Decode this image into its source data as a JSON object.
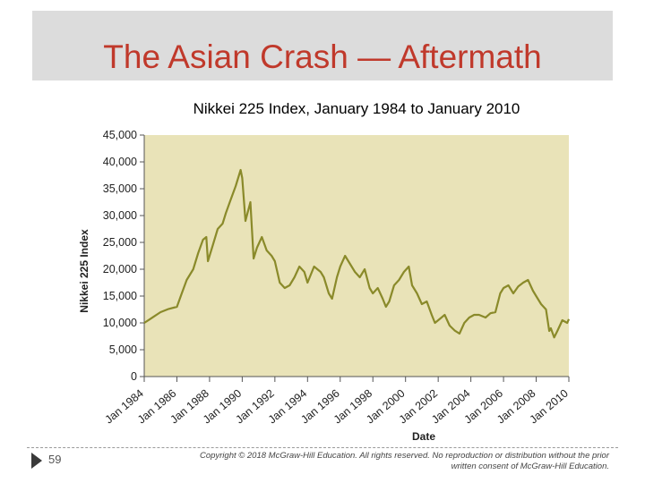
{
  "slide": {
    "title": "The Asian Crash — Aftermath",
    "page_number": "59",
    "copyright": "Copyright © 2018 McGraw-Hill Education. All rights reserved. No reproduction or distribution without the prior written consent of McGraw-Hill Education."
  },
  "colors": {
    "title": "#c0392b",
    "plot_background": "#e9e3b8",
    "series": "#8a8a2a"
  },
  "chart_data": {
    "type": "line",
    "title": "Nikkei 225 Index, January 1984 to January 2010",
    "xlabel": "Date",
    "ylabel": "Nikkei 225 Index",
    "xlim": [
      1984,
      2010
    ],
    "ylim": [
      0,
      45000
    ],
    "y_ticks": [
      "0",
      "5,000",
      "10,000",
      "15,000",
      "20,000",
      "25,000",
      "30,000",
      "35,000",
      "40,000",
      "45,000"
    ],
    "x_ticks": [
      "Jan 1984",
      "Jan 1986",
      "Jan 1988",
      "Jan 1990",
      "Jan 1992",
      "Jan 1994",
      "Jan 1996",
      "Jan 1998",
      "Jan 2000",
      "Jan 2002",
      "Jan 2004",
      "Jan 2006",
      "Jan 2008",
      "Jan 2010"
    ],
    "grid": false,
    "series": [
      {
        "x": [
          1984.0,
          1984.3,
          1984.6,
          1985.0,
          1985.5,
          1986.0,
          1986.3,
          1986.6,
          1987.0,
          1987.3,
          1987.6,
          1987.8,
          1987.9,
          1988.2,
          1988.5,
          1988.8,
          1989.0,
          1989.3,
          1989.6,
          1989.9,
          1990.0,
          1990.2,
          1990.5,
          1990.7,
          1990.9,
          1991.2,
          1991.5,
          1991.8,
          1992.0,
          1992.3,
          1992.6,
          1992.9,
          1993.2,
          1993.5,
          1993.8,
          1994.0,
          1994.4,
          1994.8,
          1995.0,
          1995.3,
          1995.5,
          1995.8,
          1996.0,
          1996.3,
          1996.6,
          1996.9,
          1997.2,
          1997.5,
          1997.8,
          1998.0,
          1998.3,
          1998.6,
          1998.8,
          1999.0,
          1999.3,
          1999.6,
          1999.9,
          2000.2,
          2000.4,
          2000.7,
          2001.0,
          2001.3,
          2001.6,
          2001.8,
          2002.0,
          2002.4,
          2002.7,
          2003.0,
          2003.3,
          2003.6,
          2003.9,
          2004.2,
          2004.5,
          2004.9,
          2005.2,
          2005.5,
          2005.8,
          2006.0,
          2006.3,
          2006.6,
          2006.9,
          2007.2,
          2007.5,
          2007.8,
          2008.0,
          2008.3,
          2008.6,
          2008.8,
          2008.9,
          2009.1,
          2009.3,
          2009.6,
          2009.9,
          2010.0
        ],
        "values": [
          10000,
          10600,
          11200,
          12000,
          12600,
          13000,
          15500,
          18000,
          20000,
          23000,
          25500,
          26000,
          21500,
          24500,
          27500,
          28500,
          30500,
          33000,
          35500,
          38500,
          37000,
          29000,
          32500,
          22000,
          24000,
          26000,
          23500,
          22500,
          21500,
          17500,
          16500,
          17000,
          18500,
          20500,
          19500,
          17500,
          20500,
          19500,
          18500,
          15500,
          14500,
          18500,
          20500,
          22500,
          21000,
          19500,
          18500,
          20000,
          16500,
          15500,
          16500,
          14500,
          13000,
          14000,
          17000,
          18000,
          19500,
          20500,
          17000,
          15500,
          13500,
          14000,
          11500,
          10000,
          10500,
          11500,
          9500,
          8600,
          8000,
          10000,
          11000,
          11500,
          11500,
          11000,
          11800,
          12000,
          15500,
          16500,
          17000,
          15500,
          16800,
          17500,
          18000,
          16000,
          15000,
          13500,
          12500,
          8500,
          9000,
          7300,
          8500,
          10500,
          10000,
          10700
        ]
      }
    ]
  }
}
